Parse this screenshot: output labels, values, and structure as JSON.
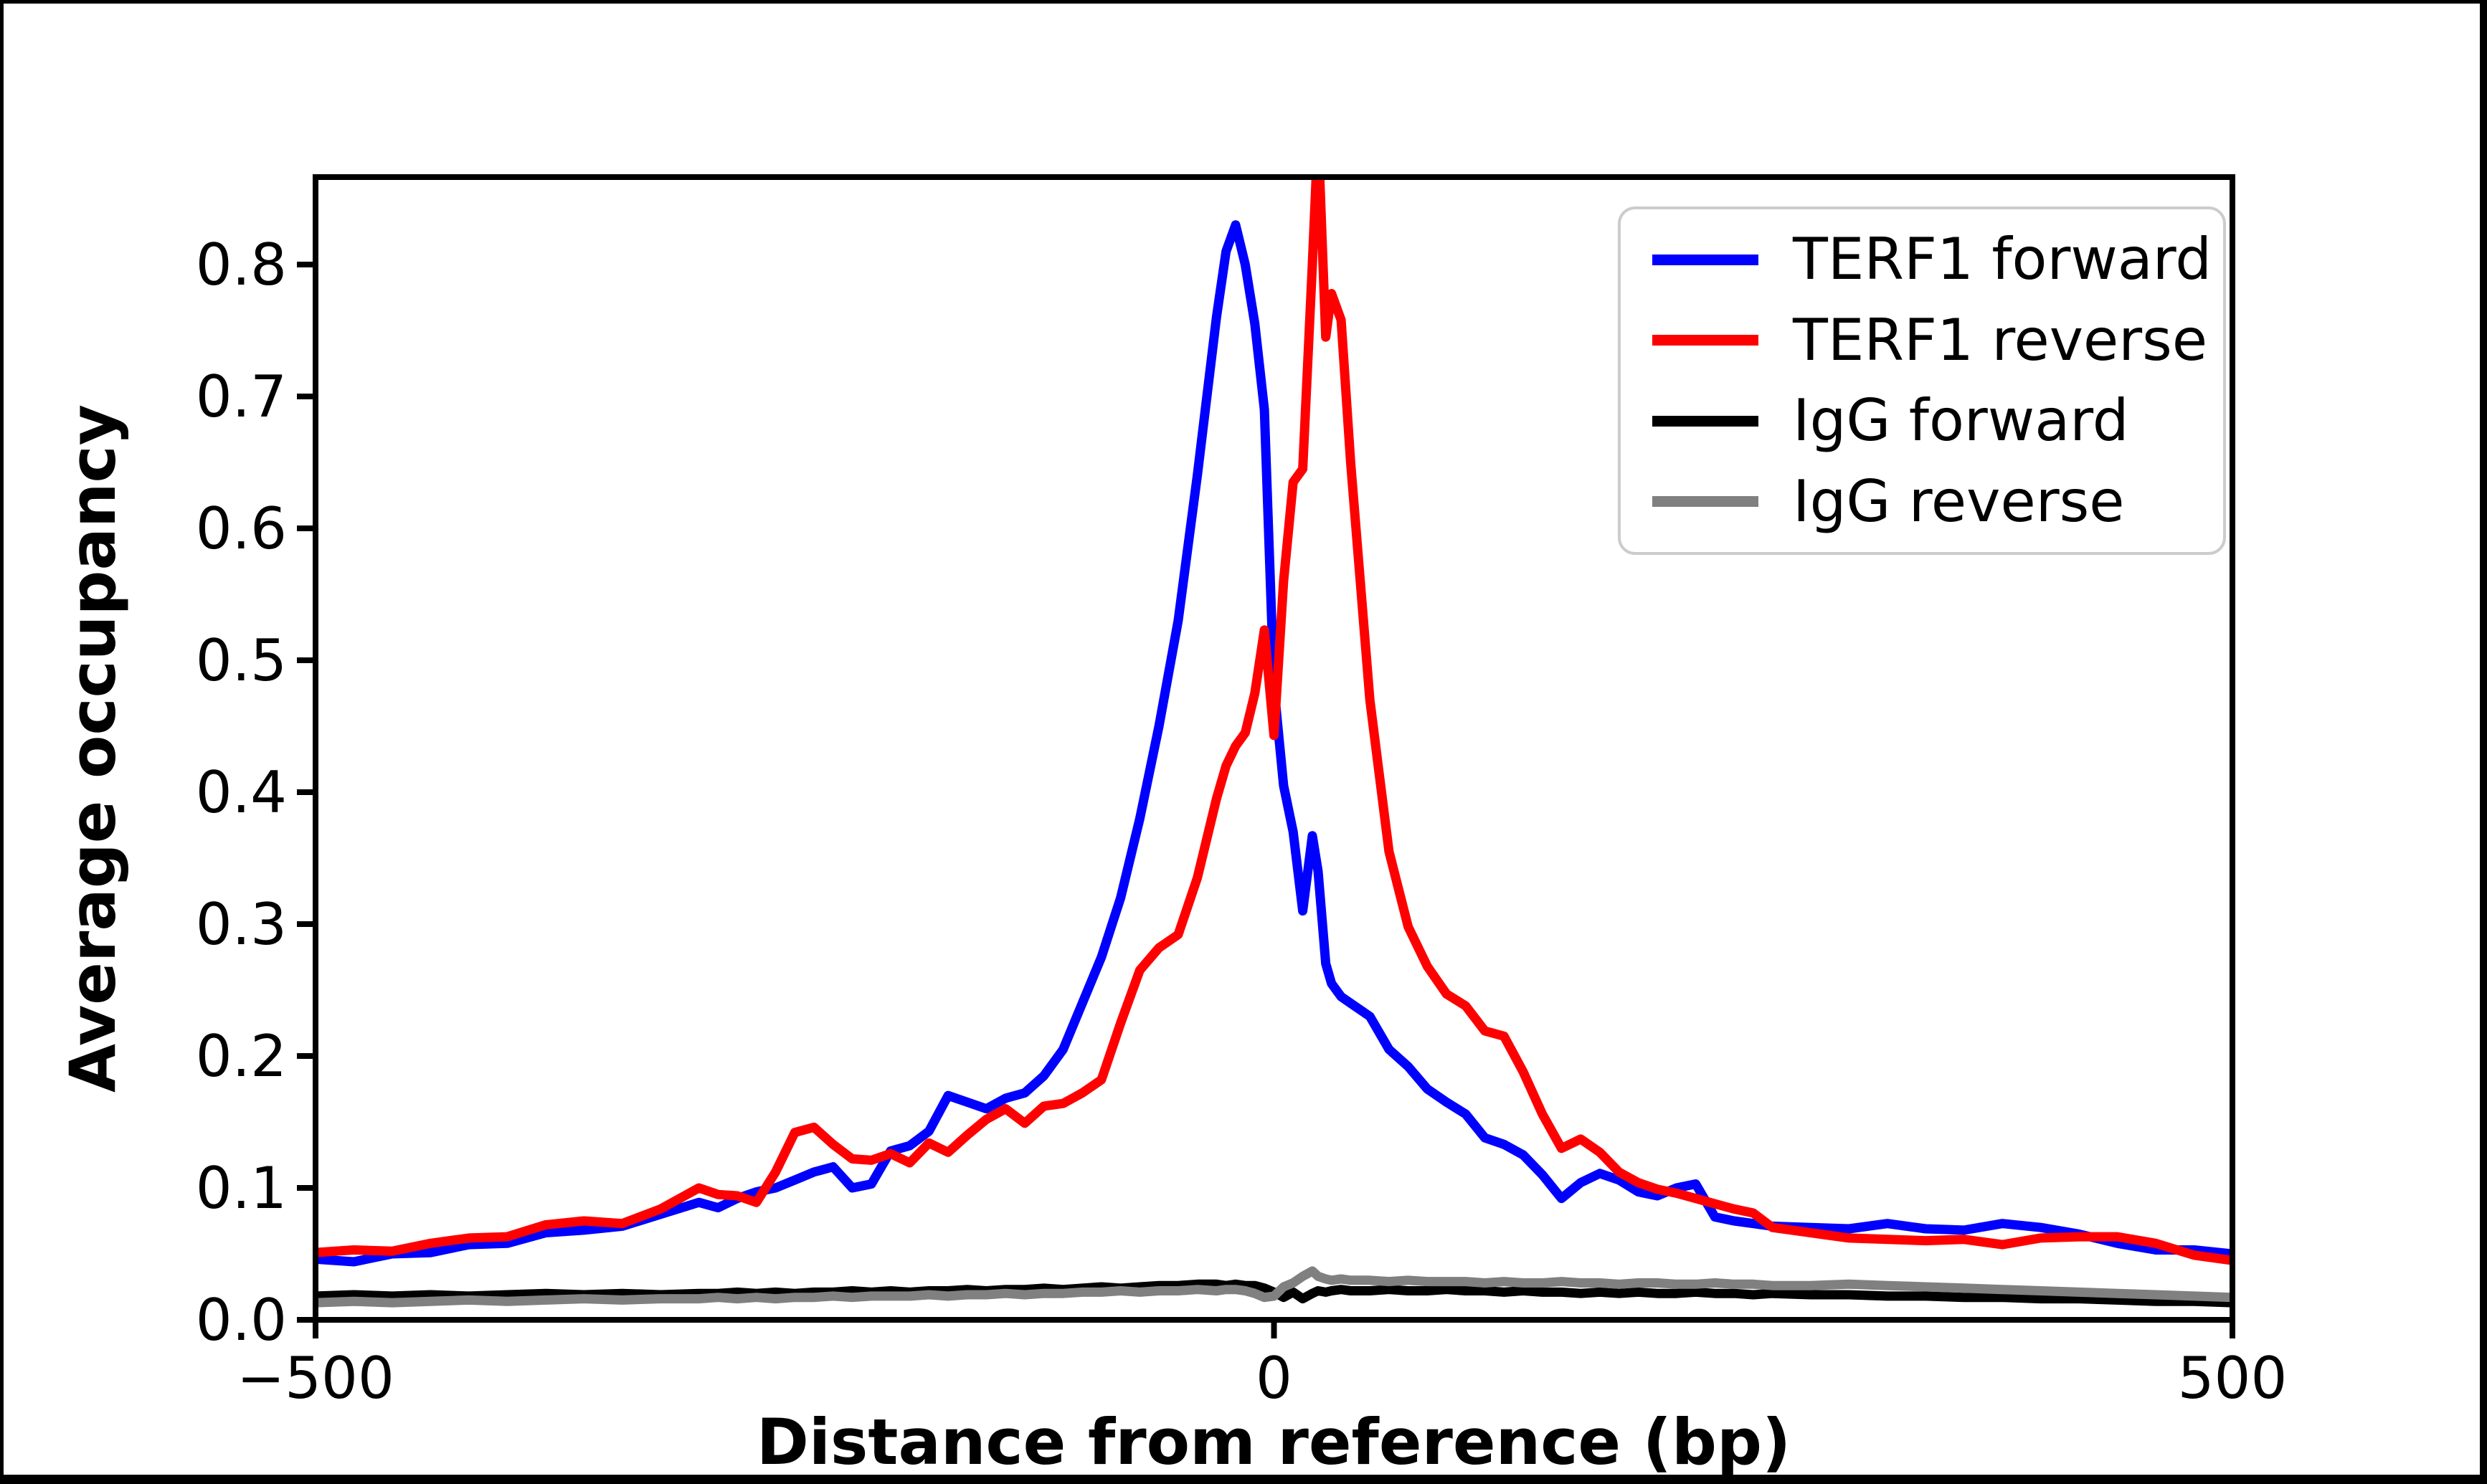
{
  "figure": {
    "background_color": "#ffffff",
    "frame_color": "#000000"
  },
  "chart_data": {
    "type": "line",
    "title": "",
    "xlabel": "Distance from reference (bp)",
    "ylabel": "Average occupancy",
    "xlim": [
      -500,
      500
    ],
    "ylim": [
      0,
      0.8663
    ],
    "grid": false,
    "legend_position": "upper right",
    "axis_color": "#000000",
    "xticks": [
      -500,
      0,
      500
    ],
    "xtick_labels": [
      "−500",
      "0",
      "500"
    ],
    "yticks": [
      0.0,
      0.1,
      0.2,
      0.3,
      0.4,
      0.5,
      0.6,
      0.7,
      0.8
    ],
    "ytick_labels": [
      "0.0",
      "0.1",
      "0.2",
      "0.3",
      "0.4",
      "0.5",
      "0.6",
      "0.7",
      "0.8"
    ],
    "x": [
      -500,
      -480,
      -460,
      -440,
      -420,
      -400,
      -380,
      -360,
      -340,
      -320,
      -300,
      -290,
      -280,
      -270,
      -260,
      -250,
      -240,
      -230,
      -220,
      -210,
      -200,
      -190,
      -180,
      -170,
      -160,
      -150,
      -140,
      -130,
      -120,
      -110,
      -100,
      -90,
      -80,
      -70,
      -60,
      -50,
      -40,
      -30,
      -25,
      -20,
      -15,
      -10,
      -5,
      0,
      5,
      10,
      15,
      20,
      23,
      27,
      30,
      35,
      40,
      50,
      60,
      70,
      80,
      90,
      100,
      110,
      120,
      130,
      140,
      150,
      160,
      170,
      180,
      190,
      200,
      210,
      220,
      230,
      240,
      250,
      260,
      280,
      300,
      320,
      340,
      360,
      380,
      400,
      420,
      440,
      460,
      480,
      500
    ],
    "series": [
      {
        "name": "TERF1 forward",
        "color": "#0000ff",
        "values": [
          0.046,
          0.044,
          0.05,
          0.051,
          0.057,
          0.058,
          0.066,
          0.068,
          0.071,
          0.08,
          0.089,
          0.085,
          0.092,
          0.097,
          0.1,
          0.106,
          0.112,
          0.116,
          0.1,
          0.103,
          0.128,
          0.132,
          0.143,
          0.17,
          0.165,
          0.16,
          0.168,
          0.172,
          0.185,
          0.205,
          0.24,
          0.275,
          0.32,
          0.38,
          0.45,
          0.53,
          0.64,
          0.76,
          0.81,
          0.83,
          0.8,
          0.755,
          0.69,
          0.48,
          0.405,
          0.37,
          0.31,
          0.367,
          0.34,
          0.27,
          0.255,
          0.245,
          0.24,
          0.23,
          0.205,
          0.192,
          0.175,
          0.165,
          0.156,
          0.138,
          0.133,
          0.125,
          0.11,
          0.092,
          0.104,
          0.111,
          0.106,
          0.097,
          0.094,
          0.1,
          0.103,
          0.078,
          0.075,
          0.073,
          0.071,
          0.07,
          0.069,
          0.073,
          0.069,
          0.068,
          0.073,
          0.07,
          0.065,
          0.058,
          0.053,
          0.053,
          0.05
        ]
      },
      {
        "name": "TERF1 reverse",
        "color": "#ff0000",
        "values": [
          0.051,
          0.053,
          0.052,
          0.058,
          0.062,
          0.063,
          0.072,
          0.075,
          0.073,
          0.084,
          0.1,
          0.095,
          0.094,
          0.089,
          0.112,
          0.142,
          0.146,
          0.133,
          0.122,
          0.121,
          0.126,
          0.119,
          0.134,
          0.127,
          0.14,
          0.152,
          0.16,
          0.149,
          0.162,
          0.164,
          0.172,
          0.182,
          0.225,
          0.265,
          0.282,
          0.292,
          0.335,
          0.395,
          0.42,
          0.435,
          0.445,
          0.475,
          0.523,
          0.443,
          0.56,
          0.635,
          0.645,
          0.8,
          0.9,
          0.745,
          0.778,
          0.758,
          0.65,
          0.47,
          0.355,
          0.298,
          0.268,
          0.247,
          0.238,
          0.219,
          0.215,
          0.188,
          0.156,
          0.13,
          0.137,
          0.127,
          0.112,
          0.104,
          0.099,
          0.096,
          0.092,
          0.088,
          0.084,
          0.081,
          0.07,
          0.066,
          0.062,
          0.061,
          0.06,
          0.061,
          0.057,
          0.062,
          0.063,
          0.063,
          0.058,
          0.049,
          0.045
        ]
      },
      {
        "name": "IgG forward",
        "color": "#000000",
        "values": [
          0.018,
          0.019,
          0.018,
          0.019,
          0.018,
          0.019,
          0.02,
          0.019,
          0.02,
          0.019,
          0.02,
          0.02,
          0.021,
          0.02,
          0.021,
          0.02,
          0.021,
          0.021,
          0.022,
          0.021,
          0.022,
          0.021,
          0.022,
          0.022,
          0.023,
          0.022,
          0.023,
          0.023,
          0.024,
          0.023,
          0.024,
          0.025,
          0.024,
          0.025,
          0.026,
          0.026,
          0.027,
          0.027,
          0.026,
          0.027,
          0.026,
          0.026,
          0.024,
          0.021,
          0.017,
          0.021,
          0.016,
          0.02,
          0.022,
          0.021,
          0.022,
          0.023,
          0.022,
          0.022,
          0.023,
          0.022,
          0.022,
          0.023,
          0.022,
          0.022,
          0.021,
          0.022,
          0.021,
          0.021,
          0.02,
          0.021,
          0.02,
          0.021,
          0.02,
          0.02,
          0.021,
          0.02,
          0.02,
          0.019,
          0.02,
          0.019,
          0.019,
          0.018,
          0.018,
          0.017,
          0.017,
          0.016,
          0.016,
          0.015,
          0.014,
          0.014,
          0.013
        ]
      },
      {
        "name": "IgG reverse",
        "color": "#808080",
        "values": [
          0.013,
          0.014,
          0.013,
          0.014,
          0.015,
          0.014,
          0.015,
          0.016,
          0.015,
          0.016,
          0.016,
          0.017,
          0.016,
          0.017,
          0.016,
          0.017,
          0.017,
          0.018,
          0.017,
          0.018,
          0.018,
          0.018,
          0.019,
          0.018,
          0.019,
          0.019,
          0.02,
          0.019,
          0.02,
          0.02,
          0.021,
          0.021,
          0.022,
          0.021,
          0.022,
          0.022,
          0.023,
          0.022,
          0.023,
          0.023,
          0.022,
          0.02,
          0.017,
          0.018,
          0.025,
          0.028,
          0.033,
          0.037,
          0.033,
          0.031,
          0.03,
          0.031,
          0.03,
          0.03,
          0.029,
          0.03,
          0.029,
          0.029,
          0.029,
          0.028,
          0.029,
          0.028,
          0.028,
          0.029,
          0.028,
          0.028,
          0.027,
          0.028,
          0.028,
          0.027,
          0.027,
          0.028,
          0.027,
          0.027,
          0.026,
          0.026,
          0.027,
          0.026,
          0.025,
          0.024,
          0.023,
          0.022,
          0.021,
          0.02,
          0.019,
          0.018,
          0.017
        ]
      }
    ]
  }
}
